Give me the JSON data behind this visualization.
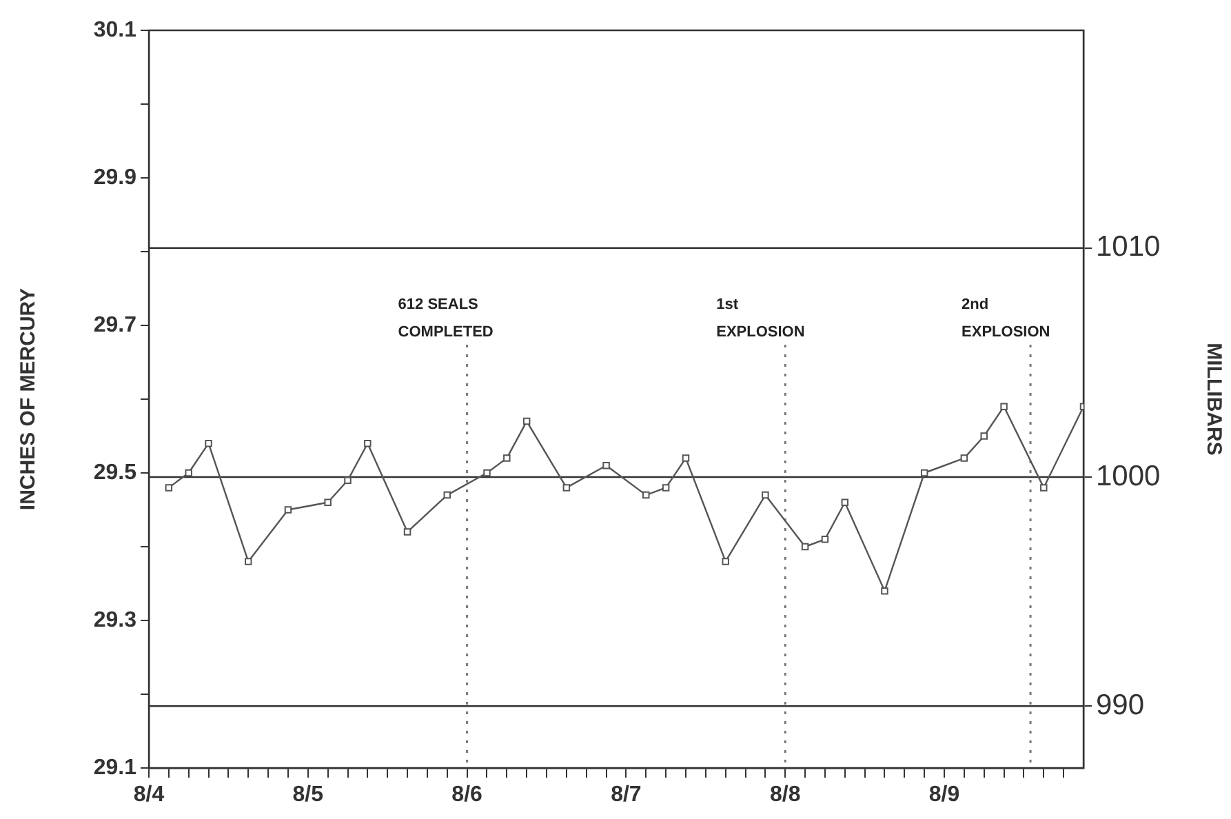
{
  "chart_data": {
    "type": "line",
    "ylabel": "INCHES OF MERCURY",
    "y2label": "MILLIBARS",
    "x": [
      "--08-04T03:00",
      "--08-04T06:00",
      "--08-04T09:00",
      "--08-04T15:00",
      "--08-04T21:00",
      "--08-05T03:00",
      "--08-05T06:00",
      "--08-05T09:00",
      "--08-05T15:00",
      "--08-05T21:00",
      "--08-06T03:00",
      "--08-06T06:00",
      "--08-06T09:00",
      "--08-06T15:00",
      "--08-06T21:00",
      "--08-07T03:00",
      "--08-07T06:00",
      "--08-07T09:00",
      "--08-07T15:00",
      "--08-07T21:00",
      "--08-08T03:00",
      "--08-08T06:00",
      "--08-08T09:00",
      "--08-08T15:00",
      "--08-08T21:00",
      "--08-09T03:00",
      "--08-09T06:00",
      "--08-09T09:00",
      "--08-09T15:00",
      "--08-09T21:00"
    ],
    "series": [
      {
        "color": "#555555",
        "values": [
          29.48,
          29.5,
          29.54,
          29.38,
          29.45,
          29.46,
          29.49,
          29.54,
          29.42,
          29.47,
          29.5,
          29.52,
          29.57,
          29.48,
          29.51,
          29.47,
          29.48,
          29.52,
          29.38,
          29.47,
          29.4,
          29.41,
          29.46,
          29.34,
          29.5,
          29.52,
          29.55,
          29.59,
          29.48,
          29.59
        ]
      }
    ],
    "xlim": [
      "--08-04",
      "--08-09T21:00"
    ],
    "xticks": [
      {
        "value": "--08-04",
        "label": "8/4"
      },
      {
        "value": "--08-04T03:00",
        "label": null
      },
      {
        "value": "--08-04T06:00",
        "label": null
      },
      {
        "value": "--08-04T09:00",
        "label": null
      },
      {
        "value": "--08-04T12:00",
        "label": null
      },
      {
        "value": "--08-04T15:00",
        "label": null
      },
      {
        "value": "--08-04T18:00",
        "label": null
      },
      {
        "value": "--08-04T21:00",
        "label": null
      },
      {
        "value": "--08-05",
        "label": "8/5"
      },
      {
        "value": "--08-05T03:00",
        "label": null
      },
      {
        "value": "--08-05T06:00",
        "label": null
      },
      {
        "value": "--08-05T09:00",
        "label": null
      },
      {
        "value": "--08-05T12:00",
        "label": null
      },
      {
        "value": "--08-05T15:00",
        "label": null
      },
      {
        "value": "--08-05T18:00",
        "label": null
      },
      {
        "value": "--08-05T21:00",
        "label": null
      },
      {
        "value": "--08-06",
        "label": "8/6"
      },
      {
        "value": "--08-06T03:00",
        "label": null
      },
      {
        "value": "--08-06T06:00",
        "label": null
      },
      {
        "value": "--08-06T09:00",
        "label": null
      },
      {
        "value": "--08-06T12:00",
        "label": null
      },
      {
        "value": "--08-06T15:00",
        "label": null
      },
      {
        "value": "--08-06T18:00",
        "label": null
      },
      {
        "value": "--08-06T21:00",
        "label": null
      },
      {
        "value": "--08-07",
        "label": "8/7"
      },
      {
        "value": "--08-07T03:00",
        "label": null
      },
      {
        "value": "--08-07T06:00",
        "label": null
      },
      {
        "value": "--08-07T09:00",
        "label": null
      },
      {
        "value": "--08-07T12:00",
        "label": null
      },
      {
        "value": "--08-07T15:00",
        "label": null
      },
      {
        "value": "--08-07T18:00",
        "label": null
      },
      {
        "value": "--08-07T21:00",
        "label": null
      },
      {
        "value": "--08-08",
        "label": "8/8"
      },
      {
        "value": "--08-08T03:00",
        "label": null
      },
      {
        "value": "--08-08T06:00",
        "label": null
      },
      {
        "value": "--08-08T09:00",
        "label": null
      },
      {
        "value": "--08-08T12:00",
        "label": null
      },
      {
        "value": "--08-08T15:00",
        "label": null
      },
      {
        "value": "--08-08T18:00",
        "label": null
      },
      {
        "value": "--08-08T21:00",
        "label": null
      },
      {
        "value": "--08-09",
        "label": "8/9"
      },
      {
        "value": "--08-09T03:00",
        "label": null
      },
      {
        "value": "--08-09T06:00",
        "label": null
      },
      {
        "value": "--08-09T09:00",
        "label": null
      },
      {
        "value": "--08-09T12:00",
        "label": null
      },
      {
        "value": "--08-09T15:00",
        "label": null
      },
      {
        "value": "--08-09T18:00",
        "label": null
      }
    ],
    "ylim": [
      29.1,
      30.1
    ],
    "yticks": [
      29.1,
      {
        "value": 29.2,
        "label": null
      },
      29.3,
      {
        "value": 29.4,
        "label": null
      },
      29.5,
      {
        "value": 29.6,
        "label": null
      },
      29.7,
      {
        "value": 29.8,
        "label": null
      },
      29.9,
      {
        "value": 30.0,
        "label": null
      },
      30.1
    ],
    "y2lim": [
      987.3,
      1019.5
    ],
    "y2ticks": [
      990,
      1000,
      1010
    ],
    "ref_lines": [
      {
        "axis": "y2",
        "value": 1010,
        "line_style": "solid"
      },
      {
        "axis": "y2",
        "value": 1000,
        "line_style": "solid"
      },
      {
        "axis": "y2",
        "value": 990,
        "line_style": "solid"
      },
      {
        "axis": "x",
        "value": "--08-06",
        "label": "612 SEALS\nCOMPLETED",
        "line_style": "dotted"
      },
      {
        "axis": "x",
        "value": "--08-08",
        "label": "1st\nEXPLOSION",
        "line_style": "dotted"
      },
      {
        "axis": "x",
        "value": "--08-09T13:00",
        "label": "2nd\nEXPLOSION",
        "line_style": "dotted"
      }
    ],
    "marker": "square",
    "line_style": "solid",
    "grid": false,
    "legend": false
  }
}
